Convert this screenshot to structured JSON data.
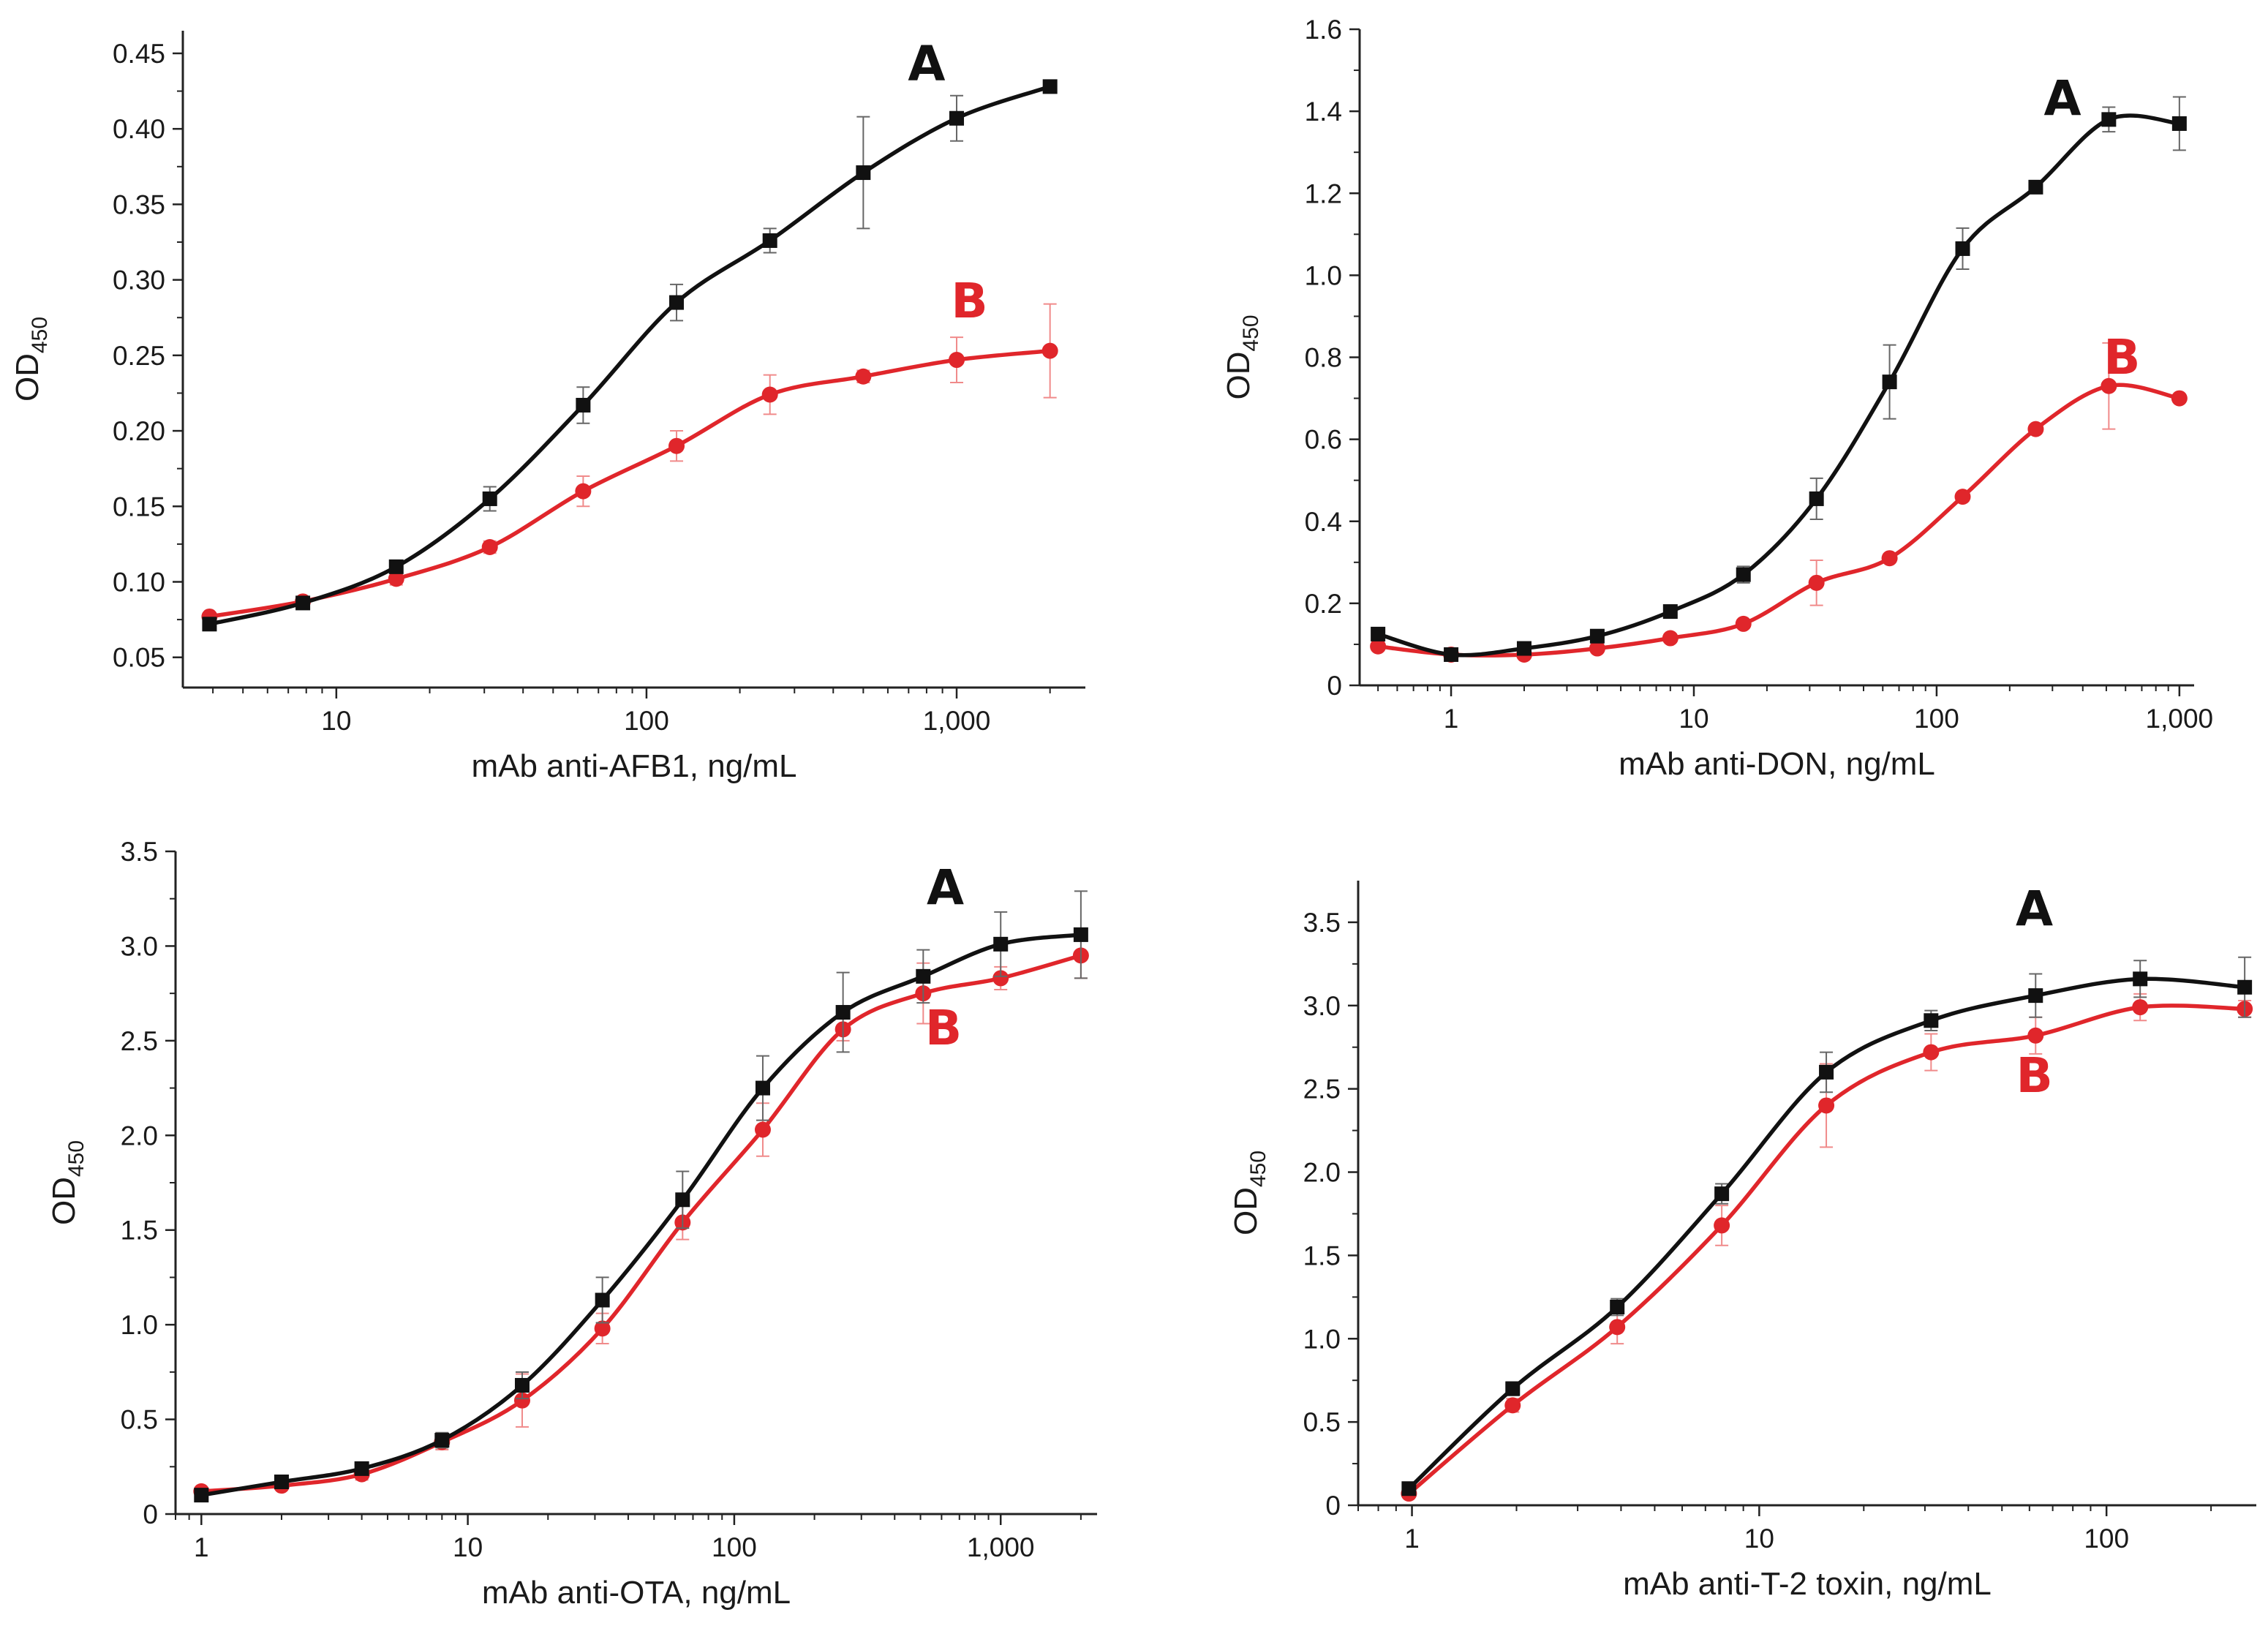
{
  "colors": {
    "A": "#111111",
    "B": "#e0262b",
    "B_error": "#f08a8a",
    "A_error": "#666666"
  },
  "ylabel": "OD",
  "ylabel_sub": "450",
  "chart_data": [
    {
      "type": "line",
      "xscale": "log",
      "xlabel": "mAb anti-AFB1, ng/mL",
      "ylabel": "OD450",
      "xlim": [
        3.2,
        2600
      ],
      "ylim": [
        0.03,
        0.465
      ],
      "xticks": [
        10,
        100,
        1000
      ],
      "xtick_labels": [
        "10",
        "100",
        "1,000"
      ],
      "yticks": [
        0.05,
        0.1,
        0.15,
        0.2,
        0.25,
        0.3,
        0.35,
        0.4,
        0.45
      ],
      "ytick_labels": [
        "0.05",
        "0.10",
        "0.15",
        "0.20",
        "0.25",
        "0.30",
        "0.35",
        "0.40",
        "0.45"
      ],
      "series": [
        {
          "name": "A",
          "label_at": [
            800,
            0.432
          ],
          "x": [
            3.9,
            7.8,
            15.6,
            31.25,
            62.5,
            125,
            250,
            500,
            1000,
            2000
          ],
          "y": [
            0.072,
            0.086,
            0.11,
            0.155,
            0.217,
            0.285,
            0.326,
            0.371,
            0.407,
            0.428
          ],
          "err": [
            0.002,
            0.002,
            0.004,
            0.008,
            0.012,
            0.012,
            0.008,
            0.037,
            0.015,
            0.003
          ]
        },
        {
          "name": "B",
          "label_at": [
            1100,
            0.275
          ],
          "x": [
            3.9,
            7.8,
            15.6,
            31.25,
            62.5,
            125,
            250,
            500,
            1000,
            2000
          ],
          "y": [
            0.077,
            0.087,
            0.102,
            0.123,
            0.16,
            0.19,
            0.224,
            0.236,
            0.247,
            0.253
          ],
          "err": [
            0.002,
            0.002,
            0.004,
            0.004,
            0.01,
            0.01,
            0.013,
            0.004,
            0.015,
            0.031
          ]
        }
      ]
    },
    {
      "type": "line",
      "xscale": "log",
      "xlabel": "mAb anti-DON, ng/mL",
      "ylabel": "OD450",
      "xlim": [
        0.42,
        1150
      ],
      "ylim": [
        0,
        1.6
      ],
      "xticks": [
        1,
        10,
        100,
        1000
      ],
      "xtick_labels": [
        "1",
        "10",
        "100",
        "1,000"
      ],
      "yticks": [
        0,
        0.2,
        0.4,
        0.6,
        0.8,
        1.0,
        1.2,
        1.4,
        1.6
      ],
      "ytick_labels": [
        "0",
        "0.2",
        "0.4",
        "0.6",
        "0.8",
        "1.0",
        "1.2",
        "1.4",
        "1.6"
      ],
      "series": [
        {
          "name": "A",
          "label_at": [
            330,
            1.39
          ],
          "x": [
            0.5,
            1,
            2,
            4,
            8,
            16,
            32,
            64,
            128,
            256,
            512,
            1000
          ],
          "y": [
            0.125,
            0.075,
            0.09,
            0.12,
            0.18,
            0.27,
            0.455,
            0.74,
            1.065,
            1.215,
            1.38,
            1.37
          ],
          "err": [
            0.01,
            0.005,
            0.01,
            0.01,
            0.01,
            0.02,
            0.05,
            0.09,
            0.05,
            0.01,
            0.03,
            0.065
          ]
        },
        {
          "name": "B",
          "label_at": [
            580,
            0.76
          ],
          "x": [
            0.5,
            1,
            2,
            4,
            8,
            16,
            32,
            64,
            128,
            256,
            512,
            1000
          ],
          "y": [
            0.095,
            0.075,
            0.075,
            0.09,
            0.115,
            0.15,
            0.25,
            0.31,
            0.46,
            0.625,
            0.73,
            0.7
          ],
          "err": [
            0.01,
            0.005,
            0.005,
            0.01,
            0.01,
            0.01,
            0.055,
            0.01,
            0.01,
            0.01,
            0.105,
            0.01
          ]
        }
      ]
    },
    {
      "type": "line",
      "xscale": "log",
      "xlabel": "mAb anti-OTA, ng/mL",
      "ylabel": "OD450",
      "xlim": [
        0.8,
        2300
      ],
      "ylim": [
        0,
        3.5
      ],
      "xticks": [
        1,
        10,
        100,
        1000
      ],
      "xtick_labels": [
        "1",
        "10",
        "100",
        "1,000"
      ],
      "yticks": [
        0,
        0.5,
        1.0,
        1.5,
        2.0,
        2.5,
        3.0,
        3.5
      ],
      "ytick_labels": [
        "0",
        "0.5",
        "1.0",
        "1.5",
        "2.0",
        "2.5",
        "3.0",
        "3.5"
      ],
      "series": [
        {
          "name": "A",
          "label_at": [
            620,
            3.22
          ],
          "x": [
            1,
            2,
            4,
            8,
            16,
            32,
            64,
            128,
            256,
            512,
            1000,
            2000
          ],
          "y": [
            0.1,
            0.17,
            0.24,
            0.39,
            0.68,
            1.13,
            1.66,
            2.25,
            2.65,
            2.84,
            3.01,
            3.06
          ],
          "err": [
            0.02,
            0.02,
            0.03,
            0.04,
            0.07,
            0.12,
            0.15,
            0.17,
            0.21,
            0.14,
            0.17,
            0.23
          ]
        },
        {
          "name": "B",
          "label_at": [
            610,
            2.48
          ],
          "x": [
            1,
            2,
            4,
            8,
            16,
            32,
            64,
            128,
            256,
            512,
            1000,
            2000
          ],
          "y": [
            0.12,
            0.15,
            0.21,
            0.38,
            0.6,
            0.98,
            1.54,
            2.03,
            2.56,
            2.75,
            2.83,
            2.95
          ],
          "err": [
            0.02,
            0.02,
            0.03,
            0.04,
            0.14,
            0.08,
            0.09,
            0.14,
            0.06,
            0.16,
            0.06,
            0.12
          ]
        }
      ]
    },
    {
      "type": "line",
      "xscale": "log",
      "xlabel": "mAb anti-T-2 toxin, ng/mL",
      "ylabel": "OD450",
      "xlim": [
        0.7,
        270
      ],
      "ylim": [
        0,
        3.75
      ],
      "xticks": [
        1,
        10,
        100
      ],
      "xtick_labels": [
        "1",
        "10",
        "100"
      ],
      "yticks": [
        0,
        0.5,
        1.0,
        1.5,
        2.0,
        2.5,
        3.0,
        3.5
      ],
      "ytick_labels": [
        "0",
        "0.5",
        "1.0",
        "1.5",
        "2.0",
        "2.5",
        "3.0",
        "3.5"
      ],
      "series": [
        {
          "name": "A",
          "label_at": [
            62,
            3.48
          ],
          "x": [
            0.98,
            1.95,
            3.9,
            7.8,
            15.6,
            31.25,
            62.5,
            125,
            250
          ],
          "y": [
            0.1,
            0.7,
            1.19,
            1.87,
            2.6,
            2.91,
            3.06,
            3.16,
            3.11
          ],
          "err": [
            0.02,
            0.04,
            0.05,
            0.06,
            0.12,
            0.06,
            0.13,
            0.11,
            0.18
          ]
        },
        {
          "name": "B",
          "label_at": [
            62,
            2.48
          ],
          "x": [
            0.98,
            1.95,
            3.9,
            7.8,
            15.6,
            31.25,
            62.5,
            125,
            250
          ],
          "y": [
            0.07,
            0.6,
            1.07,
            1.68,
            2.4,
            2.72,
            2.82,
            2.99,
            2.98
          ],
          "err": [
            0.02,
            0.04,
            0.1,
            0.12,
            0.25,
            0.11,
            0.11,
            0.08,
            0.05
          ]
        }
      ]
    }
  ]
}
